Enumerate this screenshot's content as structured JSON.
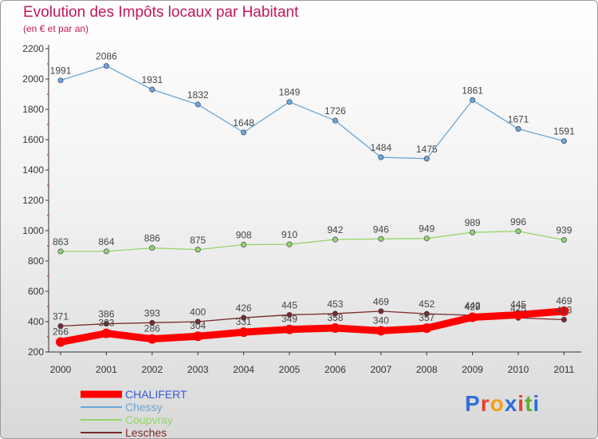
{
  "header": {
    "title": "Evolution des Impôts locaux par Habitant",
    "subtitle": "(en € et par an)"
  },
  "logo": {
    "text": "Proxiti",
    "letters": [
      "P",
      "r",
      "o",
      "x",
      "i",
      "t",
      "i"
    ],
    "colors": [
      "#2f6fd8",
      "#e8402b",
      "#f4a018",
      "#2f6fd8",
      "#e8402b",
      "#5fb02f",
      "#2f6fd8"
    ]
  },
  "chart_data": {
    "type": "line",
    "categories": [
      "2000",
      "2001",
      "2002",
      "2003",
      "2004",
      "2005",
      "2006",
      "2007",
      "2008",
      "2009",
      "2010",
      "2011"
    ],
    "ylim": [
      200,
      2200
    ],
    "yticks": [
      200,
      400,
      600,
      800,
      1000,
      1200,
      1400,
      1600,
      1800,
      2000,
      2200
    ],
    "grid": false,
    "legend_placement": "bottom-left",
    "series": [
      {
        "name": "CHALIFERT",
        "color": "#ff0000",
        "legend_color": "#3a5bd9",
        "values": [
          266,
          323,
          286,
          304,
          331,
          349,
          358,
          340,
          357,
          429,
          445,
          469
        ],
        "labels": [
          "266",
          "323",
          "286",
          "304",
          "331",
          "349",
          "358",
          "340",
          "357",
          "429",
          "445",
          "469"
        ]
      },
      {
        "name": "Chessy",
        "color": "#6aa6d6",
        "legend_color": "#6aa6d6",
        "values": [
          1991,
          2086,
          1931,
          1832,
          1648,
          1849,
          1726,
          1484,
          1475,
          1861,
          1671,
          1591
        ],
        "labels": [
          "1991",
          "2086",
          "1931",
          "1832",
          "1648",
          "1849",
          "1726",
          "1484",
          "1475",
          "1861",
          "1671",
          "1591"
        ]
      },
      {
        "name": "Coupvray",
        "color": "#94d46a",
        "legend_color": "#94d46a",
        "values": [
          863,
          864,
          886,
          875,
          908,
          910,
          942,
          946,
          949,
          989,
          996,
          939
        ],
        "labels": [
          "863",
          "864",
          "886",
          "875",
          "908",
          "910",
          "942",
          "946",
          "949",
          "989",
          "996",
          "939"
        ]
      },
      {
        "name": "Lesches",
        "color": "#7a2a2a",
        "legend_color": "#7a2a2a",
        "values": [
          371,
          386,
          393,
          400,
          426,
          445,
          453,
          469,
          452,
          442,
          425,
          413
        ],
        "labels": [
          "371",
          "386",
          "393",
          "400",
          "426",
          "445",
          "453",
          "469",
          "452",
          "442",
          "425",
          "413"
        ]
      }
    ]
  }
}
